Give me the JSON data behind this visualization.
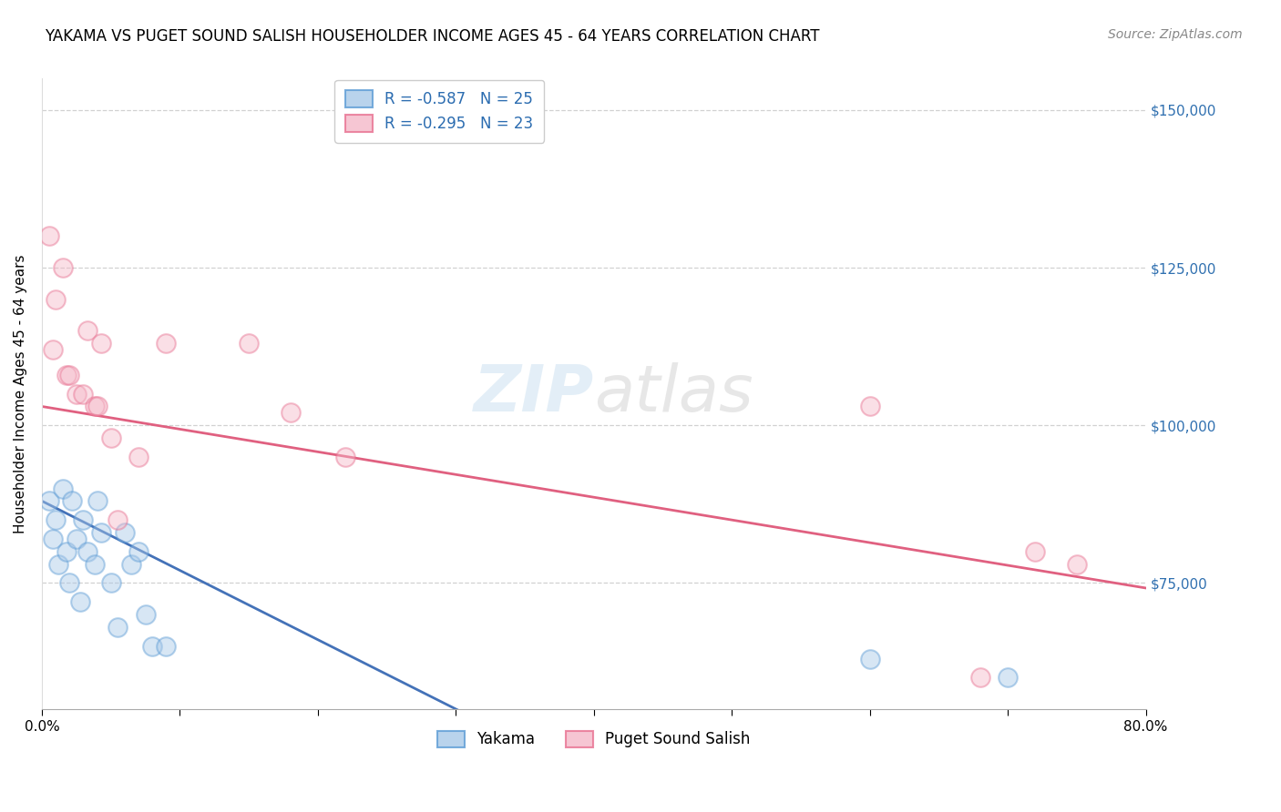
{
  "title": "YAKAMA VS PUGET SOUND SALISH HOUSEHOLDER INCOME AGES 45 - 64 YEARS CORRELATION CHART",
  "source": "Source: ZipAtlas.com",
  "xlabel_bottom": [
    "Yakama",
    "Puget Sound Salish"
  ],
  "ylabel": "Householder Income Ages 45 - 64 years",
  "yakama_color": "#a8c8e8",
  "puget_color": "#f4b8c8",
  "yakama_edge_color": "#5b9bd5",
  "puget_edge_color": "#e87090",
  "yakama_line_color": "#4472b8",
  "puget_line_color": "#e06080",
  "legend_r_yakama": "-0.587",
  "legend_n_yakama": "25",
  "legend_r_puget": "-0.295",
  "legend_n_puget": "23",
  "xlim": [
    0.0,
    0.8
  ],
  "ylim": [
    55000,
    155000
  ],
  "yticks": [
    75000,
    100000,
    125000,
    150000
  ],
  "xticks": [
    0.0,
    0.1,
    0.2,
    0.3,
    0.4,
    0.5,
    0.6,
    0.7,
    0.8
  ],
  "background_color": "#ffffff",
  "watermark_zip": "ZIP",
  "watermark_atlas": "atlas",
  "yakama_x": [
    0.005,
    0.008,
    0.01,
    0.012,
    0.015,
    0.018,
    0.02,
    0.022,
    0.025,
    0.028,
    0.03,
    0.033,
    0.038,
    0.04,
    0.043,
    0.05,
    0.055,
    0.06,
    0.065,
    0.07,
    0.075,
    0.08,
    0.09,
    0.6,
    0.7
  ],
  "yakama_y": [
    88000,
    82000,
    85000,
    78000,
    90000,
    80000,
    75000,
    88000,
    82000,
    72000,
    85000,
    80000,
    78000,
    88000,
    83000,
    75000,
    68000,
    83000,
    78000,
    80000,
    70000,
    65000,
    65000,
    63000,
    60000
  ],
  "puget_x": [
    0.005,
    0.008,
    0.01,
    0.015,
    0.018,
    0.02,
    0.025,
    0.03,
    0.033,
    0.038,
    0.04,
    0.043,
    0.05,
    0.055,
    0.07,
    0.09,
    0.15,
    0.18,
    0.22,
    0.6,
    0.68,
    0.72,
    0.75
  ],
  "puget_y": [
    130000,
    112000,
    120000,
    125000,
    108000,
    108000,
    105000,
    105000,
    115000,
    103000,
    103000,
    113000,
    98000,
    85000,
    95000,
    113000,
    113000,
    102000,
    95000,
    103000,
    60000,
    80000,
    78000
  ],
  "title_fontsize": 12,
  "axis_label_fontsize": 11,
  "tick_fontsize": 11,
  "legend_fontsize": 12,
  "source_fontsize": 10,
  "marker_size": 220,
  "marker_alpha": 0.45,
  "line_width": 2.0,
  "yakama_line_intercept": 88000,
  "yakama_line_slope": -110000,
  "puget_line_intercept": 103000,
  "puget_line_slope": -36000
}
